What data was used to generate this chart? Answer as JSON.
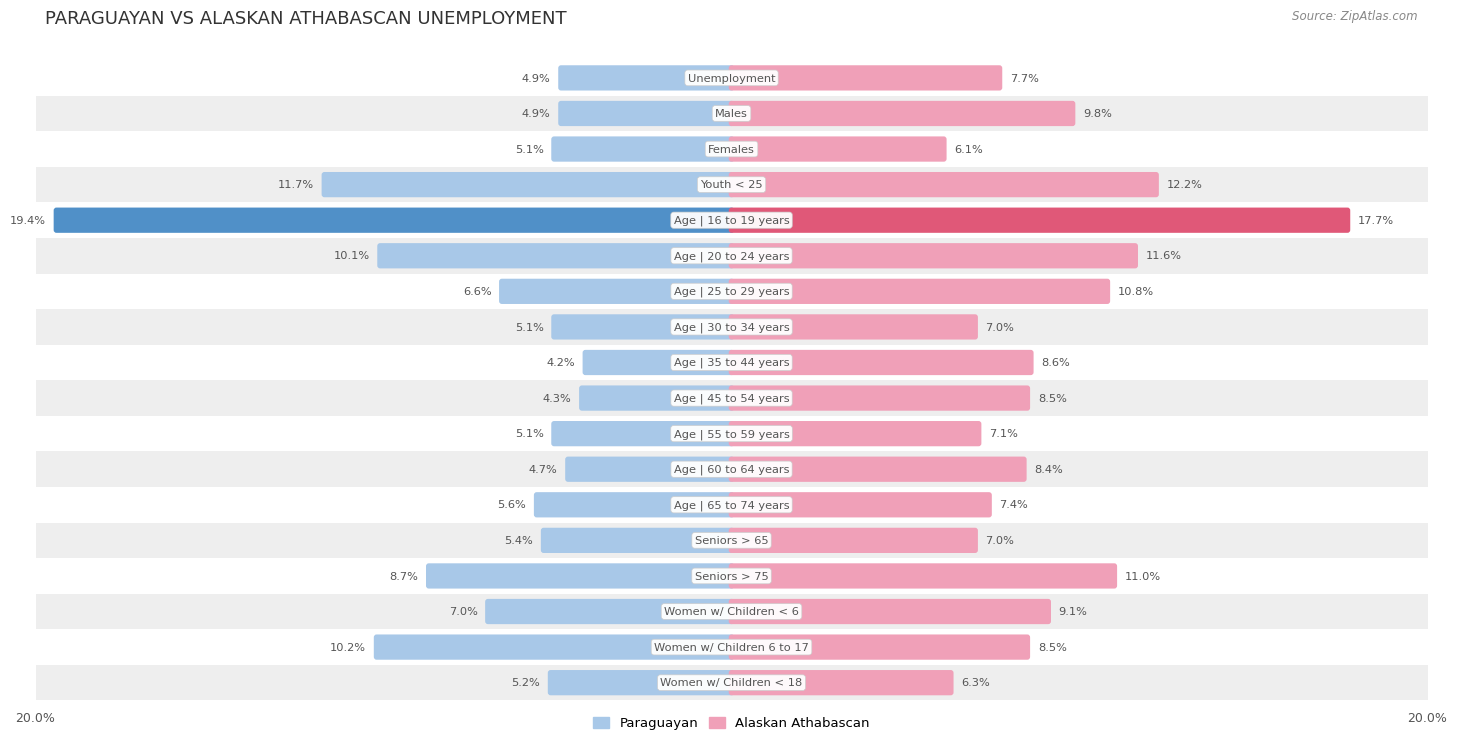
{
  "title": "PARAGUAYAN VS ALASKAN ATHABASCAN UNEMPLOYMENT",
  "source": "Source: ZipAtlas.com",
  "categories": [
    "Unemployment",
    "Males",
    "Females",
    "Youth < 25",
    "Age | 16 to 19 years",
    "Age | 20 to 24 years",
    "Age | 25 to 29 years",
    "Age | 30 to 34 years",
    "Age | 35 to 44 years",
    "Age | 45 to 54 years",
    "Age | 55 to 59 years",
    "Age | 60 to 64 years",
    "Age | 65 to 74 years",
    "Seniors > 65",
    "Seniors > 75",
    "Women w/ Children < 6",
    "Women w/ Children 6 to 17",
    "Women w/ Children < 18"
  ],
  "paraguayan": [
    4.9,
    4.9,
    5.1,
    11.7,
    19.4,
    10.1,
    6.6,
    5.1,
    4.2,
    4.3,
    5.1,
    4.7,
    5.6,
    5.4,
    8.7,
    7.0,
    10.2,
    5.2
  ],
  "alaskan": [
    7.7,
    9.8,
    6.1,
    12.2,
    17.7,
    11.6,
    10.8,
    7.0,
    8.6,
    8.5,
    7.1,
    8.4,
    7.4,
    7.0,
    11.0,
    9.1,
    8.5,
    6.3
  ],
  "paraguayan_color": "#a8c8e8",
  "alaskan_color": "#f0a0b8",
  "highlight_paraguayan_color": "#5090c8",
  "highlight_alaskan_color": "#e05878",
  "background_color": "#ffffff",
  "row_color_light": "#ffffff",
  "row_color_dark": "#eeeeee",
  "bar_height": 0.55,
  "xlim": 20.0,
  "legend_paraguayan": "Paraguayan",
  "legend_alaskan": "Alaskan Athabascan",
  "label_box_color": "#ffffff",
  "label_text_color": "#555555",
  "value_text_color": "#555555"
}
